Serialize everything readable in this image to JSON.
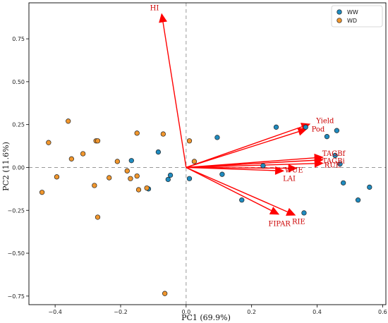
{
  "chart_data": {
    "type": "scatter",
    "title": "",
    "xlabel": "PC1 (69.9%)",
    "ylabel": "PC2 (11.6%)",
    "xlim": [
      -0.48,
      0.61
    ],
    "ylim": [
      -0.8,
      0.96
    ],
    "xticks": [
      -0.4,
      -0.2,
      0.0,
      0.2,
      0.4,
      0.6
    ],
    "xtick_labels": [
      "−0.4",
      "−0.2",
      "0.0",
      "0.2",
      "0.4",
      "0.6"
    ],
    "yticks": [
      -0.75,
      -0.5,
      -0.25,
      0.0,
      0.25,
      0.5,
      0.75
    ],
    "ytick_labels": [
      "−0.75",
      "−0.50",
      "−0.25",
      "0.00",
      "0.25",
      "0.50",
      "0.75"
    ],
    "reference_lines": {
      "x": 0,
      "y": 0,
      "style": "dashed",
      "color": "#999999"
    },
    "legend_position": "top-right",
    "grid": false,
    "series": [
      {
        "name": "WW",
        "color": "#1f8bbf",
        "points": [
          [
            -0.167,
            0.04
          ],
          [
            -0.085,
            0.09
          ],
          [
            -0.055,
            -0.07
          ],
          [
            -0.048,
            -0.045
          ],
          [
            -0.115,
            -0.125
          ],
          [
            0.01,
            -0.065
          ],
          [
            0.095,
            0.175
          ],
          [
            0.11,
            -0.04
          ],
          [
            0.17,
            -0.19
          ],
          [
            0.235,
            0.01
          ],
          [
            0.275,
            0.235
          ],
          [
            0.365,
            0.235
          ],
          [
            0.36,
            -0.265
          ],
          [
            0.43,
            0.18
          ],
          [
            0.455,
            0.07
          ],
          [
            0.46,
            0.215
          ],
          [
            0.47,
            0.02
          ],
          [
            0.48,
            -0.09
          ],
          [
            0.525,
            -0.19
          ],
          [
            0.56,
            -0.115
          ]
        ]
      },
      {
        "name": "WD",
        "color": "#f0962d",
        "points": [
          [
            -0.44,
            -0.145
          ],
          [
            -0.42,
            0.145
          ],
          [
            -0.395,
            -0.055
          ],
          [
            -0.36,
            0.27
          ],
          [
            -0.35,
            0.05
          ],
          [
            -0.315,
            0.08
          ],
          [
            -0.275,
            0.155
          ],
          [
            -0.27,
            0.155
          ],
          [
            -0.28,
            -0.105
          ],
          [
            -0.27,
            -0.29
          ],
          [
            -0.235,
            -0.06
          ],
          [
            -0.21,
            0.035
          ],
          [
            -0.18,
            -0.02
          ],
          [
            -0.17,
            -0.065
          ],
          [
            -0.15,
            0.2
          ],
          [
            -0.15,
            -0.05
          ],
          [
            -0.145,
            -0.13
          ],
          [
            -0.07,
            0.195
          ],
          [
            -0.12,
            -0.12
          ],
          [
            -0.065,
            -0.735
          ],
          [
            0.01,
            0.155
          ],
          [
            0.025,
            0.035
          ]
        ]
      }
    ],
    "loadings": [
      {
        "name": "HI",
        "x": -0.075,
        "y": 0.9
      },
      {
        "name": "Yield",
        "x": 0.38,
        "y": 0.255
      },
      {
        "name": "Pod",
        "x": 0.37,
        "y": 0.225
      },
      {
        "name": "TAGBf",
        "x": 0.42,
        "y": 0.06
      },
      {
        "name": "TAGBi",
        "x": 0.42,
        "y": 0.045
      },
      {
        "name": "RUE",
        "x": 0.42,
        "y": 0.025
      },
      {
        "name": "WUE",
        "x": 0.34,
        "y": -0.005
      },
      {
        "name": "LAI",
        "x": 0.3,
        "y": -0.02
      },
      {
        "name": "FIPAR",
        "x": 0.285,
        "y": -0.275
      },
      {
        "name": "RIE",
        "x": 0.335,
        "y": -0.28
      }
    ],
    "loading_color": "#ff0000"
  }
}
